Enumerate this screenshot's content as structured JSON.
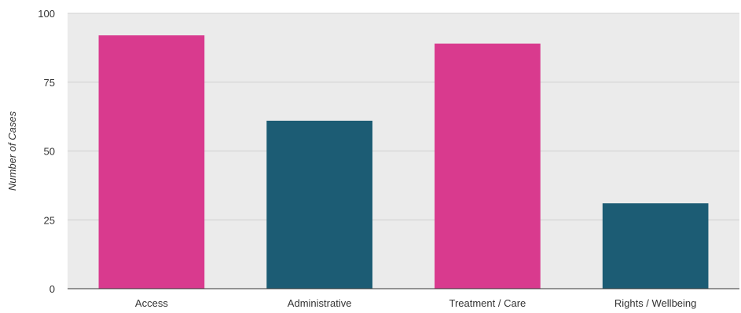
{
  "chart_data": {
    "type": "bar",
    "title": "",
    "xlabel": "",
    "ylabel": "Number of Cases",
    "ylim": [
      0,
      100
    ],
    "yticks": [
      0,
      25,
      50,
      75,
      100
    ],
    "grid": true,
    "legend": "none",
    "categories": [
      "Access",
      "Administrative",
      "Treatment / Care",
      "Rights / Wellbeing"
    ],
    "values": [
      92,
      61,
      89,
      31
    ],
    "colors": [
      "#d93a8e",
      "#1c5c74",
      "#d93a8e",
      "#1c5c74"
    ],
    "plot_background": "#ebebeb",
    "gridline_color": "#d0d0d0"
  }
}
